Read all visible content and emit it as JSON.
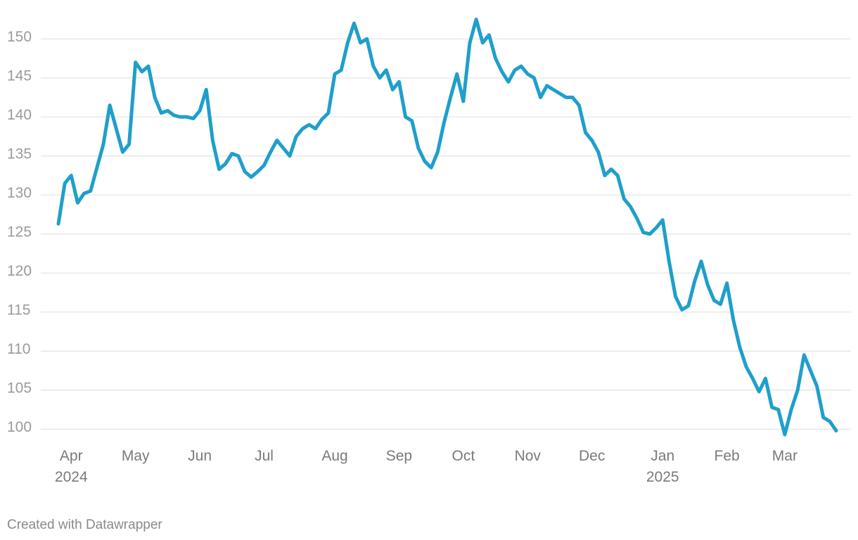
{
  "chart_data": {
    "type": "line",
    "categories": [
      null,
      null,
      "Apr 2024",
      null,
      null,
      null,
      null,
      null,
      null,
      null,
      null,
      null,
      "May",
      null,
      null,
      null,
      null,
      null,
      null,
      null,
      null,
      null,
      "Jun",
      null,
      null,
      null,
      null,
      null,
      null,
      null,
      null,
      null,
      "Jul",
      null,
      null,
      null,
      null,
      null,
      null,
      null,
      null,
      null,
      null,
      "Aug",
      null,
      null,
      null,
      null,
      null,
      null,
      null,
      null,
      null,
      "Sep",
      null,
      null,
      null,
      null,
      null,
      null,
      null,
      null,
      null,
      "Oct",
      null,
      null,
      null,
      null,
      null,
      null,
      null,
      null,
      null,
      "Nov",
      null,
      null,
      null,
      null,
      null,
      null,
      null,
      null,
      null,
      "Dec",
      null,
      null,
      null,
      null,
      null,
      null,
      null,
      null,
      null,
      null,
      "Jan 2025",
      null,
      null,
      null,
      null,
      null,
      null,
      null,
      null,
      null,
      "Feb",
      null,
      null,
      null,
      null,
      null,
      null,
      null,
      null,
      "Mar",
      null,
      null,
      null,
      null,
      null,
      null,
      null,
      null
    ],
    "values": [
      126.3,
      131.5,
      132.5,
      129,
      130.2,
      130.5,
      133.5,
      136.5,
      141.5,
      138.5,
      135.5,
      136.5,
      147,
      145.8,
      146.5,
      142.5,
      140.5,
      140.8,
      140.2,
      140,
      140,
      139.8,
      140.8,
      143.5,
      137,
      133.3,
      134,
      135.3,
      135,
      133,
      132.3,
      133,
      133.8,
      135.5,
      137,
      136,
      135,
      137.5,
      138.5,
      139,
      138.5,
      139.7,
      140.5,
      145.5,
      146,
      149.5,
      152,
      149.5,
      150,
      146.5,
      145,
      146,
      143.5,
      144.5,
      140,
      139.5,
      136,
      134.3,
      133.5,
      135.5,
      139.3,
      142.5,
      145.5,
      142,
      149.5,
      152.5,
      149.5,
      150.5,
      147.5,
      145.8,
      144.5,
      146,
      146.5,
      145.5,
      145,
      142.5,
      144,
      143.5,
      143,
      142.5,
      142.5,
      141.5,
      138,
      137,
      135.5,
      132.5,
      133.3,
      132.5,
      129.5,
      128.5,
      127,
      125.2,
      125,
      125.8,
      126.8,
      121.5,
      117,
      115.3,
      115.8,
      119,
      121.5,
      118.5,
      116.5,
      116,
      118.7,
      114,
      110.5,
      108,
      106.5,
      104.8,
      106.5,
      102.8,
      102.5,
      99.3,
      102.5,
      105,
      109.5,
      107.5,
      105.5,
      101.5,
      101,
      99.8
    ],
    "color": "#1f9fcb",
    "ylim": [
      98.5,
      153
    ],
    "yticks": [
      100,
      105,
      110,
      115,
      120,
      125,
      130,
      135,
      140,
      145,
      150
    ],
    "grid": true,
    "credit": "Created with Datawrapper"
  }
}
